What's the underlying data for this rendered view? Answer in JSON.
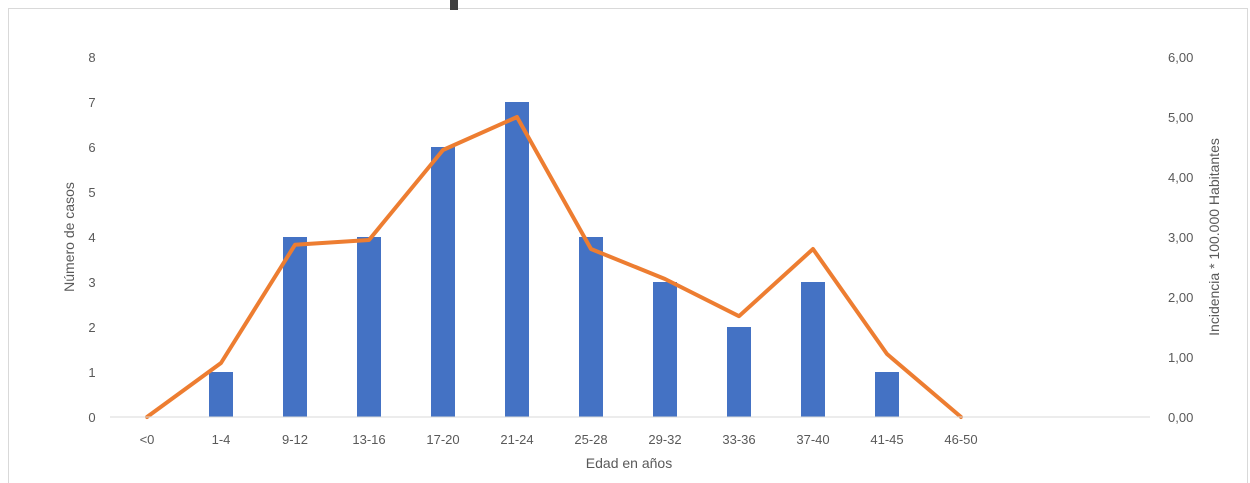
{
  "chart_data": {
    "type": "bar",
    "categories": [
      "<0",
      "1-4",
      "9-12",
      "13-16",
      "17-20",
      "21-24",
      "25-28",
      "29-32",
      "33-36",
      "37-40",
      "41-45",
      "46-50"
    ],
    "series": [
      {
        "kind": "bar",
        "axis": "left",
        "color": "#4472c4",
        "values": [
          0,
          1,
          4,
          4,
          6,
          7,
          4,
          3,
          2,
          3,
          1,
          0
        ]
      },
      {
        "kind": "line",
        "axis": "right",
        "color": "#ed7d31",
        "values": [
          0.0,
          0.9,
          2.87,
          2.95,
          4.45,
          5.0,
          2.8,
          2.3,
          1.68,
          2.8,
          1.05,
          0.0
        ]
      }
    ],
    "xlabel": "Edad en años",
    "ylabel": "Número de casos",
    "y2label": "Incidencia * 100.000 Habitantes",
    "ylim": [
      0,
      8
    ],
    "y2lim": [
      0,
      6
    ],
    "y_ticks": [
      "0",
      "1",
      "2",
      "3",
      "4",
      "5",
      "6",
      "7",
      "8"
    ],
    "y2_ticks": [
      "0,00",
      "1,00",
      "2,00",
      "3,00",
      "4,00",
      "5,00",
      "6,00"
    ],
    "grid": false,
    "legend": "none"
  }
}
